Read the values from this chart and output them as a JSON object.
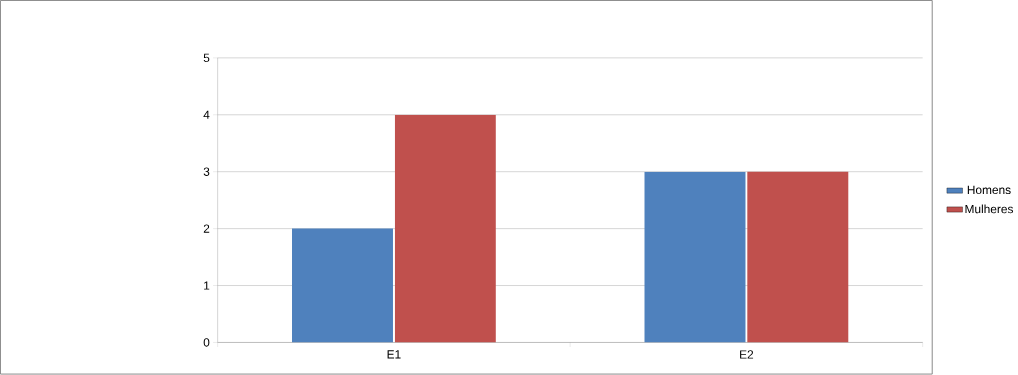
{
  "chart_data": {
    "type": "bar",
    "categories": [
      "E1",
      "E2"
    ],
    "series": [
      {
        "name": "Homens",
        "color": "#4f81bd",
        "values": [
          2,
          3
        ]
      },
      {
        "name": "Mulheres",
        "color": "#c0504d",
        "values": [
          4,
          3
        ]
      }
    ],
    "ylim": [
      0,
      5
    ],
    "yticks": [
      0,
      1,
      2,
      3,
      4,
      5
    ],
    "grid": "y",
    "legend": "right"
  }
}
